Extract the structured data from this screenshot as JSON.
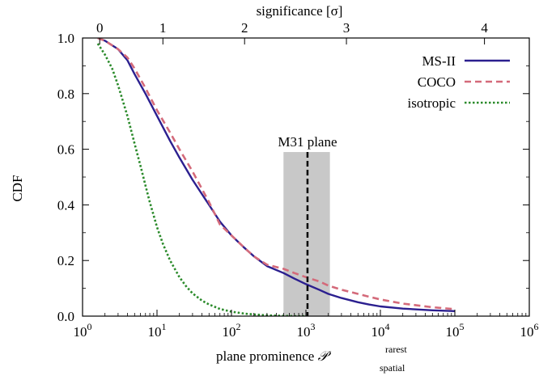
{
  "chart_data": {
    "type": "line",
    "xlabel": "plane prominence",
    "xlabel_symbol": "𝒫",
    "xlabel_sup": "rarest",
    "xlabel_sub": "spatial",
    "top_xlabel": "significance  [σ]",
    "ylabel": "CDF",
    "x_scale": "log",
    "xlim": [
      1,
      1000000
    ],
    "ylim": [
      0.0,
      1.0
    ],
    "x_ticks": [
      {
        "value": 1,
        "base": "10",
        "exp": "0"
      },
      {
        "value": 10,
        "base": "10",
        "exp": "1"
      },
      {
        "value": 100,
        "base": "10",
        "exp": "2"
      },
      {
        "value": 1000,
        "base": "10",
        "exp": "3"
      },
      {
        "value": 10000,
        "base": "10",
        "exp": "4"
      },
      {
        "value": 100000,
        "base": "10",
        "exp": "5"
      },
      {
        "value": 1000000,
        "base": "10",
        "exp": "6"
      }
    ],
    "y_ticks": [
      {
        "value": 0.0,
        "label": "0.0"
      },
      {
        "value": 0.2,
        "label": "0.2"
      },
      {
        "value": 0.4,
        "label": "0.4"
      },
      {
        "value": 0.6,
        "label": "0.6"
      },
      {
        "value": 0.8,
        "label": "0.8"
      },
      {
        "value": 1.0,
        "label": "1.0"
      }
    ],
    "top_ticks": [
      {
        "label": "0",
        "x_value": 1.7
      },
      {
        "label": "1",
        "x_value": 12
      },
      {
        "label": "2",
        "x_value": 150
      },
      {
        "label": "3",
        "x_value": 3500
      },
      {
        "label": "4",
        "x_value": 250000
      }
    ],
    "legend_position": "top-right",
    "series": [
      {
        "name": "MS-II",
        "color": "#2b1f8f",
        "style": "solid",
        "x": [
          1.6,
          2,
          3,
          4,
          5,
          7,
          10,
          15,
          20,
          30,
          50,
          70,
          100,
          150,
          200,
          300,
          500,
          700,
          1000,
          1500,
          2000,
          3000,
          5000,
          7000,
          10000,
          20000,
          50000,
          100000
        ],
        "y": [
          1.0,
          0.99,
          0.96,
          0.92,
          0.87,
          0.8,
          0.72,
          0.63,
          0.57,
          0.49,
          0.4,
          0.34,
          0.29,
          0.245,
          0.215,
          0.18,
          0.155,
          0.135,
          0.115,
          0.095,
          0.08,
          0.065,
          0.05,
          0.042,
          0.035,
          0.027,
          0.021,
          0.018
        ]
      },
      {
        "name": "COCO",
        "color": "#d46a7a",
        "style": "dashed",
        "x": [
          1.6,
          2,
          3,
          4,
          5,
          7,
          10,
          15,
          20,
          30,
          50,
          70,
          100,
          150,
          200,
          300,
          500,
          700,
          1000,
          1500,
          2000,
          3000,
          5000,
          7000,
          10000,
          20000,
          50000,
          100000
        ],
        "y": [
          1.0,
          0.99,
          0.96,
          0.93,
          0.89,
          0.82,
          0.74,
          0.66,
          0.6,
          0.52,
          0.41,
          0.33,
          0.29,
          0.245,
          0.215,
          0.185,
          0.17,
          0.155,
          0.14,
          0.125,
          0.11,
          0.095,
          0.08,
          0.07,
          0.06,
          0.045,
          0.032,
          0.025
        ]
      },
      {
        "name": "isotropic",
        "color": "#2a8a2a",
        "style": "dotted",
        "x": [
          1.6,
          2,
          2.5,
          3,
          4,
          5,
          6,
          7,
          8,
          10,
          12,
          15,
          20,
          25,
          30,
          40,
          50,
          70,
          100,
          150,
          200,
          300,
          500,
          700,
          1000
        ],
        "y": [
          0.98,
          0.94,
          0.89,
          0.83,
          0.72,
          0.62,
          0.54,
          0.47,
          0.41,
          0.32,
          0.26,
          0.2,
          0.14,
          0.105,
          0.082,
          0.056,
          0.042,
          0.026,
          0.016,
          0.009,
          0.006,
          0.003,
          0.001,
          0.0,
          0.0
        ]
      }
    ],
    "annotations": [
      {
        "label": "M31 plane",
        "line_x": 1050,
        "band_x": [
          500,
          2100
        ],
        "band_top": 0.59
      }
    ]
  }
}
